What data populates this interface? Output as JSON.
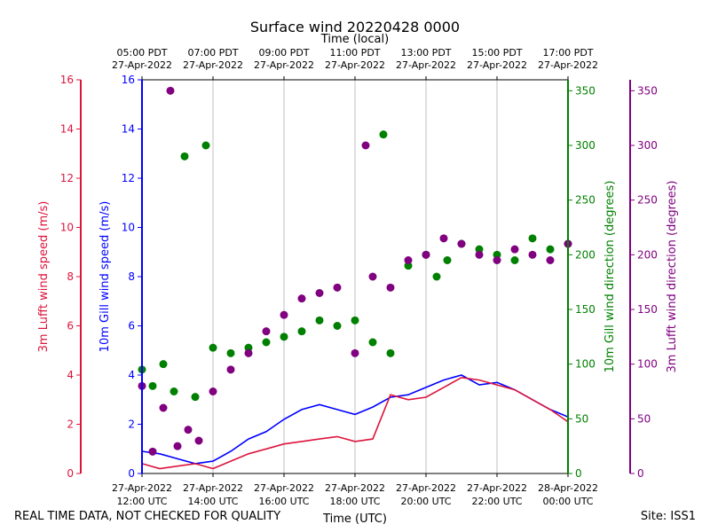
{
  "chart_data": {
    "type": "line+scatter",
    "title": "Surface wind 20220428 0000",
    "top_axis_label": "Time (local)",
    "xlabel": "Time (UTC)",
    "footer_left": "REAL TIME DATA, NOT CHECKED FOR QUALITY",
    "footer_right": "Site: ISS1",
    "x_range_utc_hours": [
      12,
      24
    ],
    "x_ticks_bottom": [
      {
        "h": 12,
        "date": "27-Apr-2022",
        "time": "12:00 UTC"
      },
      {
        "h": 14,
        "date": "27-Apr-2022",
        "time": "14:00 UTC"
      },
      {
        "h": 16,
        "date": "27-Apr-2022",
        "time": "16:00 UTC"
      },
      {
        "h": 18,
        "date": "27-Apr-2022",
        "time": "18:00 UTC"
      },
      {
        "h": 20,
        "date": "27-Apr-2022",
        "time": "20:00 UTC"
      },
      {
        "h": 22,
        "date": "27-Apr-2022",
        "time": "22:00 UTC"
      },
      {
        "h": 24,
        "date": "28-Apr-2022",
        "time": "00:00 UTC"
      }
    ],
    "x_ticks_top": [
      {
        "h": 12,
        "time": "05:00 PDT",
        "date": "27-Apr-2022"
      },
      {
        "h": 14,
        "time": "07:00 PDT",
        "date": "27-Apr-2022"
      },
      {
        "h": 16,
        "time": "09:00 PDT",
        "date": "27-Apr-2022"
      },
      {
        "h": 18,
        "time": "11:00 PDT",
        "date": "27-Apr-2022"
      },
      {
        "h": 20,
        "time": "13:00 PDT",
        "date": "27-Apr-2022"
      },
      {
        "h": 22,
        "time": "15:00 PDT",
        "date": "27-Apr-2022"
      },
      {
        "h": 24,
        "time": "17:00 PDT",
        "date": "27-Apr-2022"
      }
    ],
    "axes": {
      "lufft_speed": {
        "label": "3m Lufft wind speed (m/s)",
        "color": "#DC143C",
        "range": [
          0,
          16
        ],
        "ticks": [
          0,
          2,
          4,
          6,
          8,
          10,
          12,
          14,
          16
        ]
      },
      "gill_speed": {
        "label": "10m Gill wind speed (m/s)",
        "color": "#0000FF",
        "range": [
          0,
          16
        ],
        "ticks": [
          0,
          2,
          4,
          6,
          8,
          10,
          12,
          14,
          16
        ]
      },
      "gill_dir": {
        "label": "10m Gill wind direction (degrees)",
        "color": "#008000",
        "range": [
          0,
          360
        ],
        "ticks": [
          0,
          50,
          100,
          150,
          200,
          250,
          300,
          350
        ]
      },
      "lufft_dir": {
        "label": "3m Lufft wind direction (degrees)",
        "color": "#800080",
        "range": [
          0,
          360
        ],
        "ticks": [
          0,
          50,
          100,
          150,
          200,
          250,
          300,
          350
        ]
      }
    },
    "series": [
      {
        "name": "10m Gill wind speed",
        "axis": "gill_speed",
        "kind": "line",
        "color": "#0000FF",
        "x": [
          12.0,
          12.5,
          13.0,
          13.5,
          14.0,
          14.5,
          15.0,
          15.5,
          16.0,
          16.5,
          17.0,
          17.5,
          18.0,
          18.5,
          19.0,
          19.5,
          20.0,
          20.5,
          21.0,
          21.5,
          22.0,
          22.5,
          23.0,
          23.5,
          24.0
        ],
        "y": [
          0.9,
          0.8,
          0.6,
          0.4,
          0.5,
          0.9,
          1.4,
          1.7,
          2.2,
          2.6,
          2.8,
          2.6,
          2.4,
          2.7,
          3.1,
          3.2,
          3.5,
          3.8,
          4.0,
          3.6,
          3.7,
          3.4,
          3.0,
          2.6,
          2.3
        ]
      },
      {
        "name": "3m Lufft wind speed",
        "axis": "lufft_speed",
        "kind": "line",
        "color": "#DC143C",
        "x": [
          12.0,
          12.5,
          13.0,
          13.5,
          14.0,
          14.5,
          15.0,
          15.5,
          16.0,
          16.5,
          17.0,
          17.5,
          18.0,
          18.5,
          19.0,
          19.5,
          20.0,
          20.5,
          21.0,
          21.5,
          22.0,
          22.5,
          23.0,
          23.5,
          24.0
        ],
        "y": [
          0.4,
          0.2,
          0.3,
          0.4,
          0.2,
          0.5,
          0.8,
          1.0,
          1.2,
          1.3,
          1.4,
          1.5,
          1.3,
          1.4,
          3.2,
          3.0,
          3.1,
          3.5,
          3.9,
          3.8,
          3.6,
          3.4,
          3.0,
          2.6,
          2.1
        ]
      },
      {
        "name": "10m Gill wind direction",
        "axis": "gill_dir",
        "kind": "scatter",
        "color": "#008000",
        "x": [
          12.0,
          12.3,
          12.6,
          12.9,
          13.2,
          13.5,
          13.8,
          14.0,
          14.5,
          15.0,
          15.5,
          16.0,
          16.5,
          17.0,
          17.5,
          18.0,
          18.5,
          18.8,
          19.0,
          19.5,
          20.0,
          20.3,
          20.6,
          21.0,
          21.5,
          22.0,
          22.5,
          23.0,
          23.5,
          24.0
        ],
        "y": [
          95,
          80,
          100,
          75,
          290,
          70,
          300,
          115,
          110,
          115,
          120,
          125,
          130,
          140,
          135,
          140,
          120,
          310,
          110,
          190,
          200,
          180,
          195,
          210,
          205,
          200,
          195,
          215,
          205,
          210
        ]
      },
      {
        "name": "3m Lufft wind direction",
        "axis": "lufft_dir",
        "kind": "scatter",
        "color": "#800080",
        "x": [
          12.0,
          12.3,
          12.6,
          12.8,
          13.0,
          13.3,
          13.6,
          14.0,
          14.5,
          15.0,
          15.5,
          16.0,
          16.5,
          17.0,
          17.5,
          18.0,
          18.3,
          18.5,
          19.0,
          19.5,
          20.0,
          20.5,
          21.0,
          21.5,
          22.0,
          22.5,
          23.0,
          23.5,
          24.0
        ],
        "y": [
          80,
          20,
          60,
          350,
          25,
          40,
          30,
          75,
          95,
          110,
          130,
          145,
          160,
          165,
          170,
          110,
          300,
          180,
          170,
          195,
          200,
          215,
          210,
          200,
          195,
          205,
          200,
          195,
          210
        ]
      }
    ]
  }
}
